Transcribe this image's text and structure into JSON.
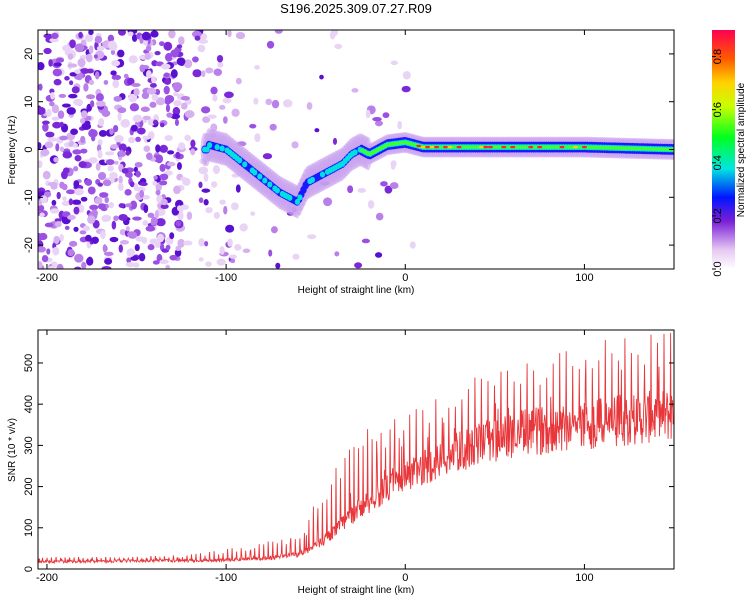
{
  "chart_data": [
    {
      "type": "heatmap",
      "title": "S196.2025.309.07.27.R09",
      "xlabel": "Height of straight line (km)",
      "ylabel": "Frequency (Hz)",
      "xlim": [
        -205,
        150
      ],
      "ylim": [
        -25,
        25
      ],
      "x_ticks": [
        -200,
        -100,
        0,
        100
      ],
      "y_ticks": [
        -20,
        -10,
        0,
        10,
        20
      ],
      "colorbar": {
        "label": "Normalized spectral amplitude",
        "range": [
          0,
          0.9
        ],
        "ticks": [
          "0.0",
          "0.2",
          "0.4",
          "0.6",
          "0.8"
        ]
      },
      "ridge": {
        "description": "dominant frequency track",
        "x": [
          -110,
          -100,
          -90,
          -80,
          -70,
          -60,
          -55,
          -50,
          -45,
          -40,
          -35,
          -30,
          -25,
          -20,
          -10,
          0,
          10,
          50,
          100,
          150
        ],
        "y": [
          1,
          0,
          -3,
          -6,
          -9,
          -11,
          -7,
          -6,
          -5,
          -4,
          -3,
          -1,
          0,
          -1,
          1,
          1.5,
          0.5,
          0.5,
          0.5,
          0
        ]
      }
    },
    {
      "type": "line",
      "xlabel": "Height of straight line (km)",
      "ylabel": "SNR (10 * v/v)",
      "xlim": [
        -205,
        150
      ],
      "ylim": [
        0,
        580
      ],
      "x_ticks": [
        -200,
        -100,
        0,
        100
      ],
      "y_ticks": [
        0,
        100,
        200,
        300,
        400,
        500
      ],
      "series": [
        {
          "name": "SNR",
          "color": "#e8363a",
          "x": [
            -205,
            -180,
            -150,
            -120,
            -100,
            -80,
            -60,
            -50,
            -40,
            -30,
            -20,
            -10,
            0,
            10,
            20,
            30,
            40,
            60,
            80,
            100,
            120,
            140,
            150
          ],
          "baseline": [
            18,
            18,
            20,
            20,
            22,
            25,
            35,
            55,
            90,
            130,
            165,
            195,
            220,
            245,
            265,
            285,
            300,
            325,
            340,
            350,
            360,
            370,
            375
          ],
          "peaks": [
            30,
            30,
            30,
            35,
            50,
            65,
            90,
            170,
            250,
            310,
            360,
            360,
            380,
            420,
            440,
            460,
            480,
            500,
            520,
            550,
            570,
            580,
            580
          ]
        }
      ]
    }
  ]
}
